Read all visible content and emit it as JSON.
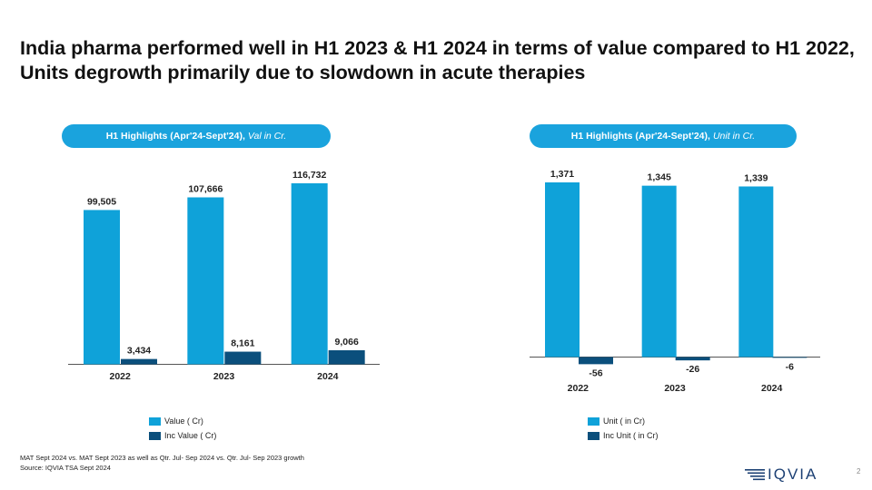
{
  "title": "India pharma performed well in H1 2023 & H1 2024 in terms of value compared to H1 2022, Units degrowth primarily due to slowdown in acute therapies",
  "colors": {
    "primary": "#0fa2d9",
    "secondary": "#0b4f7c",
    "pill": "#1aa3dd"
  },
  "chart_data": [
    {
      "type": "bar",
      "header_main": "H1 Highlights (Apr'24-Sept'24),",
      "header_unit": "Val in Cr.",
      "categories": [
        "2022",
        "2023",
        "2024"
      ],
      "series": [
        {
          "name": "Value ( Cr)",
          "values": [
            99505,
            107666,
            116732
          ],
          "labels": [
            "99,505",
            "107,666",
            "116,732"
          ]
        },
        {
          "name": "Inc Value ( Cr)",
          "values": [
            3434,
            8161,
            9066
          ],
          "labels": [
            "3,434",
            "8,161",
            "9,066"
          ]
        }
      ],
      "ylim": [
        0,
        120000
      ]
    },
    {
      "type": "bar",
      "header_main": "H1 Highlights (Apr'24-Sept'24),",
      "header_unit": "Unit in Cr.",
      "categories": [
        "2022",
        "2023",
        "2024"
      ],
      "series": [
        {
          "name": "Unit ( in Cr)",
          "values": [
            1371,
            1345,
            1339
          ],
          "labels": [
            "1,371",
            "1,345",
            "1,339"
          ]
        },
        {
          "name": "Inc Unit ( in Cr)",
          "values": [
            -56,
            -26,
            -6
          ],
          "labels": [
            "-56",
            "-26",
            "-6"
          ]
        }
      ],
      "ylim": [
        -60,
        1400
      ]
    }
  ],
  "footnote": {
    "line1": "MAT Sept 2024 vs. MAT Sept 2023 as well as Qtr. Jul- Sep 2024 vs. Qtr. Jul- Sep 2023 growth",
    "line2": "Source: IQVIA TSA Sept 2024"
  },
  "logo_text": "IQVIA",
  "page_number": "2"
}
